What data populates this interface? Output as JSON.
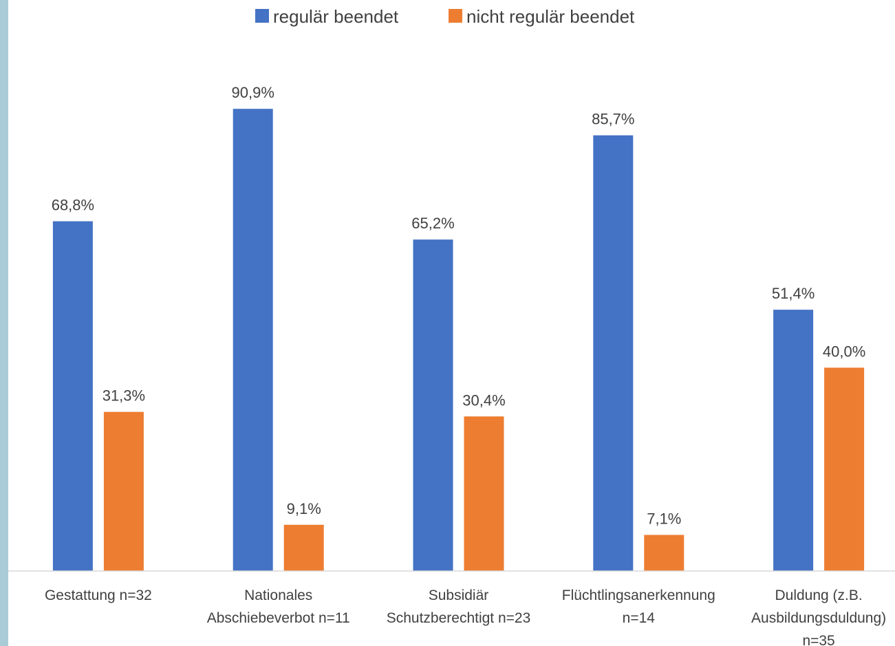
{
  "chart_data": {
    "type": "bar",
    "categories": [
      [
        "Gestattung n=32"
      ],
      [
        "Nationales",
        "Abschiebeverbot n=11"
      ],
      [
        "Subsidiär",
        "Schutzberechtigt n=23"
      ],
      [
        "Flüchtlingsanerkennung",
        "n=14"
      ],
      [
        "Duldung (z.B.",
        "Ausbildungsduldung)",
        "n=35"
      ]
    ],
    "series": [
      {
        "name": "regulär beendet",
        "color": "#4472c4",
        "values": [
          68.8,
          90.9,
          65.2,
          85.7,
          51.4
        ],
        "labels": [
          "68,8%",
          "90,9%",
          "65,2%",
          "85,7%",
          "51,4%"
        ]
      },
      {
        "name": "nicht regulär beendet",
        "color": "#ed7d31",
        "values": [
          31.3,
          9.1,
          30.4,
          7.1,
          40.0
        ],
        "labels": [
          "31,3%",
          "9,1%",
          "30,4%",
          "7,1%",
          "40,0%"
        ]
      }
    ],
    "ylim": [
      0,
      100
    ],
    "grid": false,
    "legend_position": "top-center"
  }
}
